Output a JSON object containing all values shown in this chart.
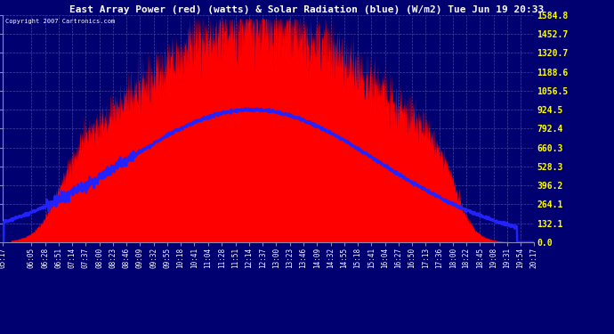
{
  "title": "East Array Power (red) (watts) & Solar Radiation (blue) (W/m2) Tue Jun 19 20:33",
  "copyright": "Copyright 2007 Cartronics.com",
  "bg_color": "#000070",
  "title_color": "#ffffff",
  "copyright_color": "#ffffff",
  "y_ticks": [
    0.0,
    132.1,
    264.1,
    396.2,
    528.3,
    660.3,
    792.4,
    924.5,
    1056.5,
    1188.6,
    1320.7,
    1452.7,
    1584.8
  ],
  "x_labels": [
    "05:17",
    "06:05",
    "06:28",
    "06:51",
    "07:14",
    "07:37",
    "08:00",
    "08:23",
    "08:46",
    "09:09",
    "09:32",
    "09:55",
    "10:18",
    "10:41",
    "11:04",
    "11:28",
    "11:51",
    "12:14",
    "12:37",
    "13:00",
    "13:23",
    "13:46",
    "14:09",
    "14:32",
    "14:55",
    "15:18",
    "15:41",
    "16:04",
    "16:27",
    "16:50",
    "17:13",
    "17:36",
    "18:00",
    "18:22",
    "18:45",
    "19:08",
    "19:31",
    "19:54",
    "20:17"
  ],
  "ymax": 1584.8,
  "ymin": 0.0,
  "red_color": "#ff0000",
  "blue_color": "#2222ff",
  "figsize": [
    6.9,
    3.75
  ],
  "dpi": 100
}
